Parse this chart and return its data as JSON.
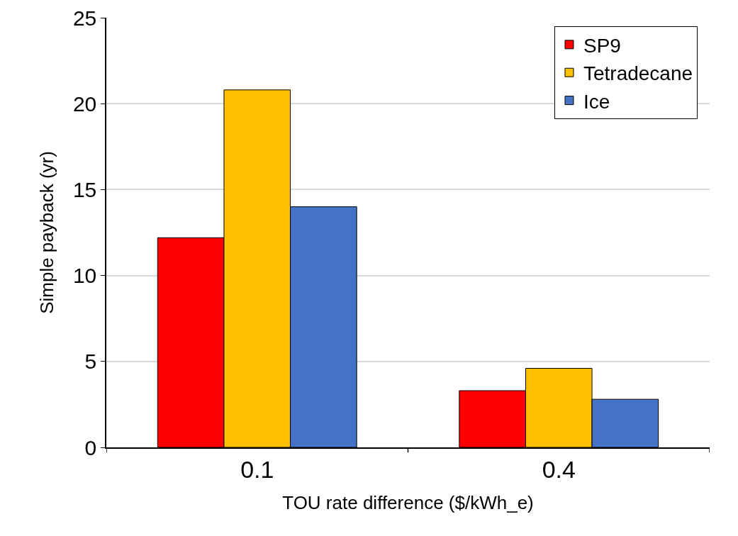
{
  "chart_data": {
    "type": "bar",
    "xlabel": "TOU rate difference ($/kWh_e)",
    "ylabel": "Simple payback (yr)",
    "categories": [
      "0.1",
      "0.4"
    ],
    "series": [
      {
        "name": "SP9",
        "color": "#ff0000",
        "values": [
          12.2,
          3.3
        ]
      },
      {
        "name": "Tetradecane",
        "color": "#ffc000",
        "values": [
          20.8,
          4.6
        ]
      },
      {
        "name": "Ice",
        "color": "#4472c4",
        "values": [
          14.0,
          2.8
        ]
      }
    ],
    "ylim": [
      0,
      25
    ],
    "yticks": [
      0,
      5,
      10,
      15,
      20,
      25
    ],
    "grid": "y",
    "legend": "top right"
  }
}
